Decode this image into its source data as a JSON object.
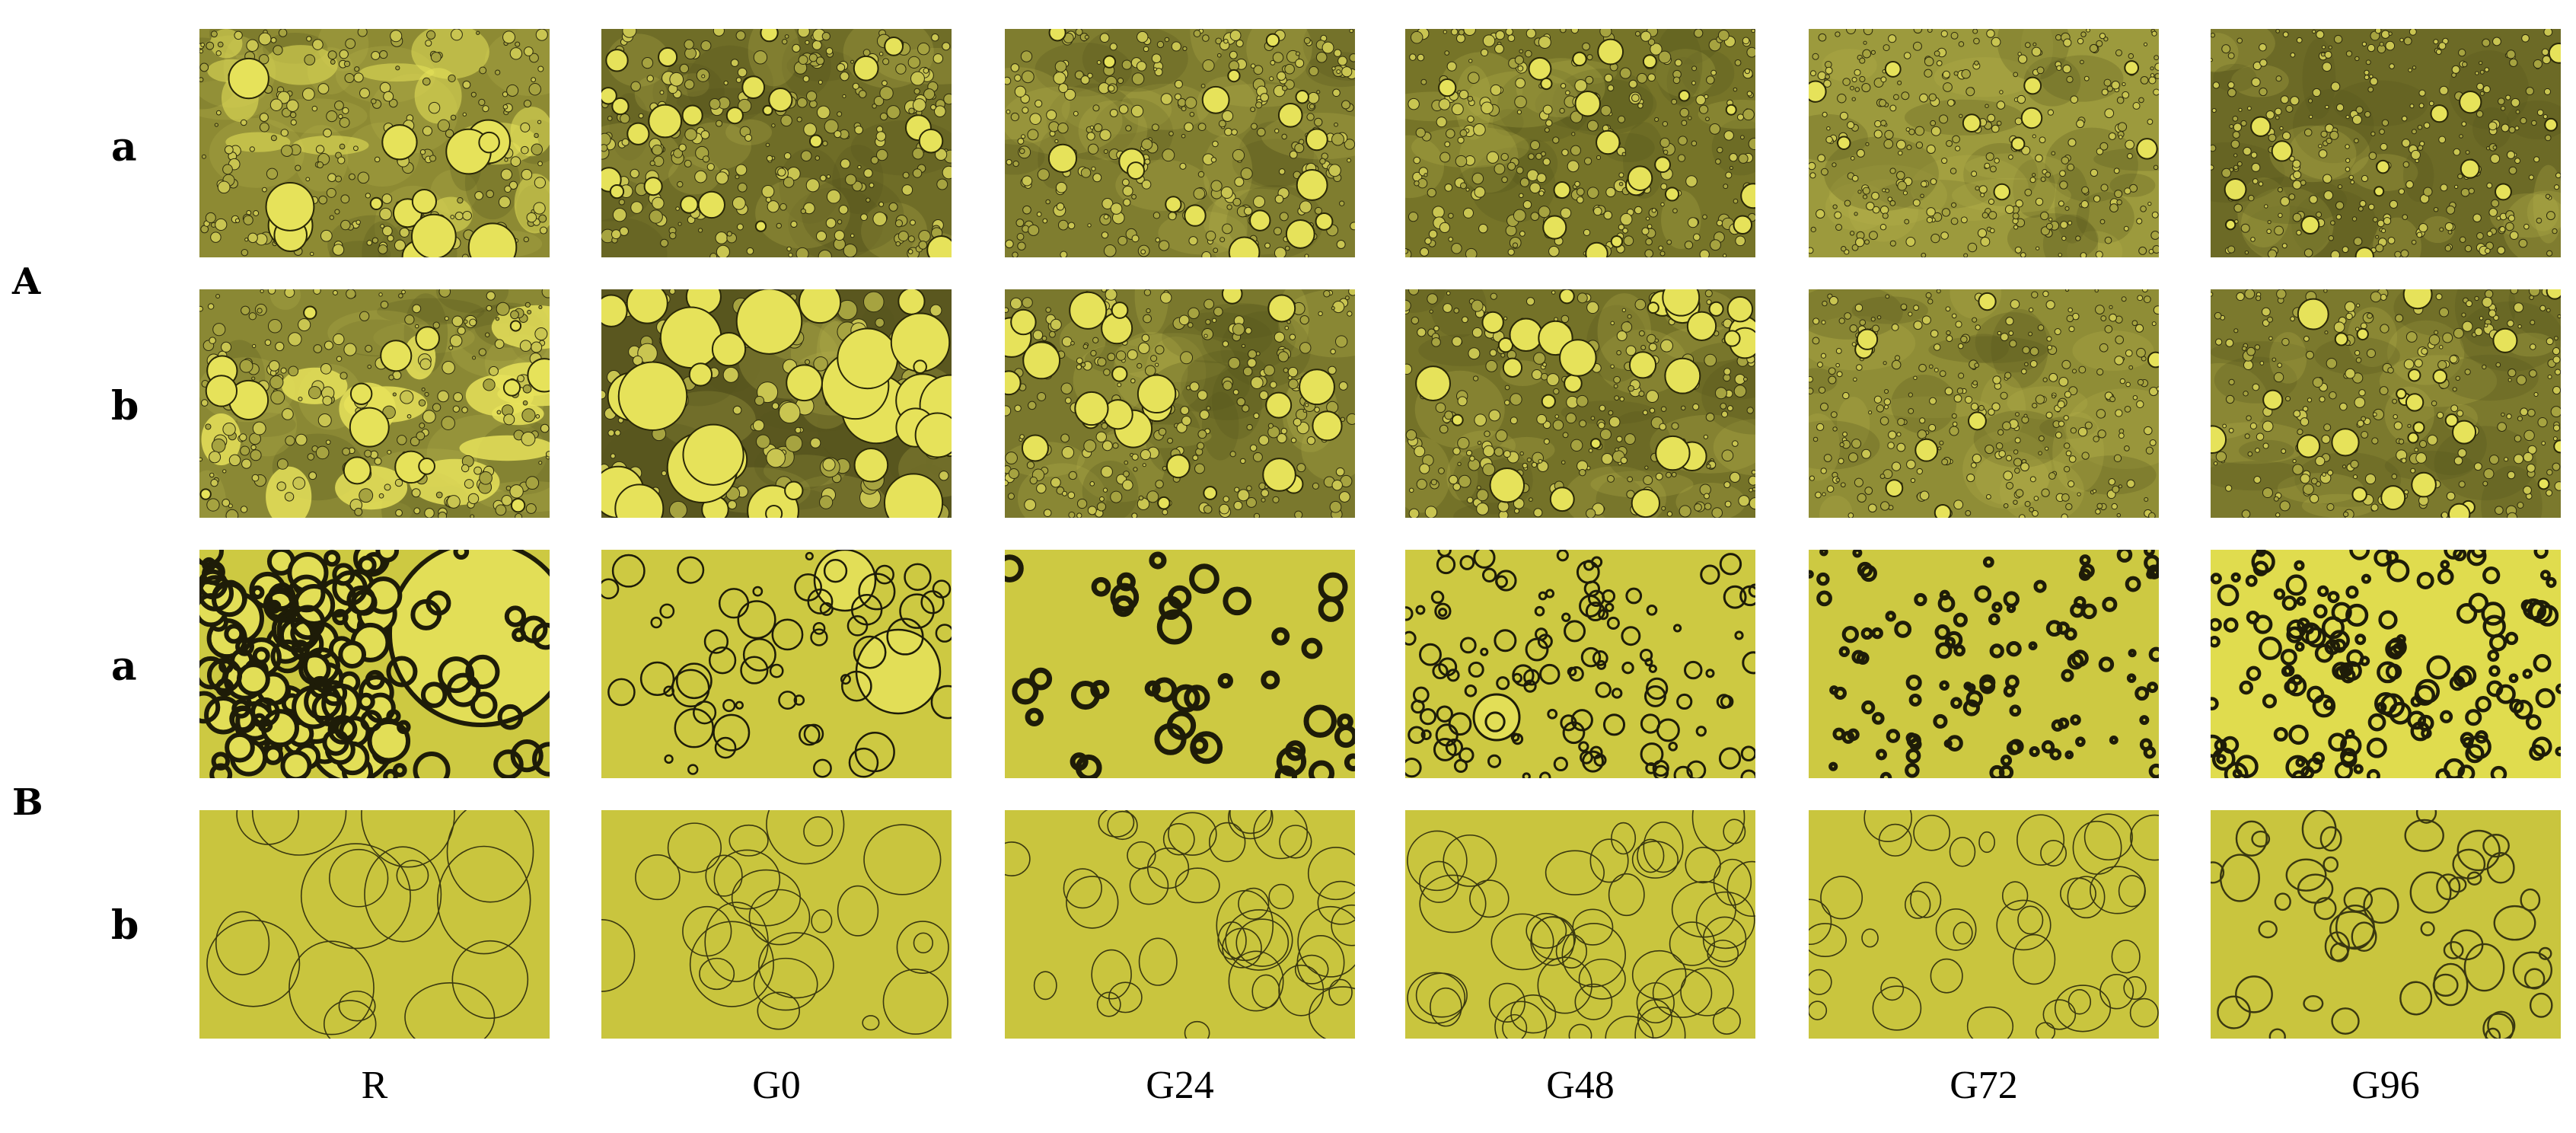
{
  "groups": [
    {
      "label": "A",
      "rows": [
        "a",
        "b"
      ]
    },
    {
      "label": "B",
      "rows": [
        "a",
        "b"
      ]
    }
  ],
  "columns": [
    "R",
    "G0",
    "G24",
    "G48",
    "G72",
    "G96"
  ],
  "colors": {
    "bright_yellow": "#e6e25a",
    "olive_dense": "#7c7a2c",
    "olive_dark": "#4d4a1a",
    "field_yellow": "#cdc942",
    "ring_dark": "#1e1c08"
  }
}
